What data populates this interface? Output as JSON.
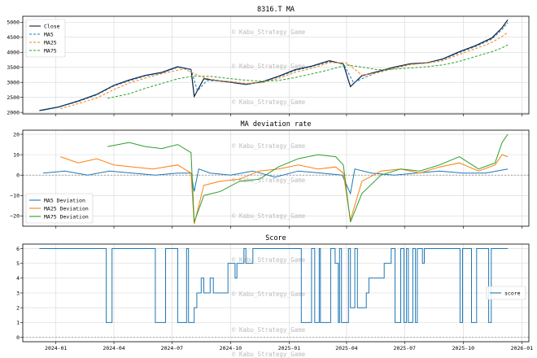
{
  "watermark": "© Kabu_Strategy_Game",
  "colors": {
    "close": "#0b1f3a",
    "ma5": "#1f77b4",
    "ma25": "#ff7f0e",
    "ma75": "#2ca02c",
    "score": "#1f77b4",
    "zero": "#888888"
  },
  "chart_data": [
    {
      "type": "line",
      "title": "8316.T MA",
      "ylim": [
        1950,
        5200
      ],
      "yticks": [
        "2000",
        "2500",
        "3000",
        "3500",
        "4000",
        "4500",
        "5000"
      ],
      "ytick_values": [
        2000,
        2500,
        3000,
        3500,
        4000,
        4500,
        5000
      ],
      "legend": [
        "Close",
        "MA5",
        "MA25",
        "MA75"
      ],
      "legend_position": "upper-left",
      "series": [
        {
          "name": "Close",
          "style": "solid",
          "x": [
            "2023-12-06",
            "2024-01-05",
            "2024-02-05",
            "2024-03-05",
            "2024-04-01",
            "2024-04-25",
            "2024-05-20",
            "2024-06-15",
            "2024-07-10",
            "2024-07-31",
            "2024-08-05",
            "2024-08-20",
            "2024-09-10",
            "2024-10-01",
            "2024-10-25",
            "2024-11-20",
            "2024-12-15",
            "2025-01-10",
            "2025-02-05",
            "2025-03-05",
            "2025-03-27",
            "2025-04-07",
            "2025-04-25",
            "2025-05-20",
            "2025-06-15",
            "2025-07-10",
            "2025-08-05",
            "2025-08-30",
            "2025-09-25",
            "2025-10-20",
            "2025-11-15",
            "2025-12-01",
            "2025-12-10"
          ],
          "values": [
            2060,
            2180,
            2380,
            2600,
            2900,
            3080,
            3230,
            3330,
            3520,
            3430,
            2530,
            3120,
            3060,
            3000,
            2930,
            3020,
            3200,
            3420,
            3540,
            3720,
            3610,
            2860,
            3220,
            3360,
            3510,
            3620,
            3650,
            3780,
            4020,
            4220,
            4480,
            4820,
            5080
          ]
        },
        {
          "name": "MA5",
          "style": "dashed",
          "x": [
            "2023-12-12",
            "2024-01-05",
            "2024-02-05",
            "2024-03-05",
            "2024-04-01",
            "2024-04-25",
            "2024-05-20",
            "2024-06-15",
            "2024-07-10",
            "2024-07-31",
            "2024-08-10",
            "2024-08-25",
            "2024-09-10",
            "2024-10-01",
            "2024-10-25",
            "2024-11-20",
            "2024-12-15",
            "2025-01-10",
            "2025-02-05",
            "2025-03-05",
            "2025-03-27",
            "2025-04-12",
            "2025-04-30",
            "2025-05-20",
            "2025-06-15",
            "2025-07-10",
            "2025-08-05",
            "2025-08-30",
            "2025-09-25",
            "2025-10-20",
            "2025-11-15",
            "2025-12-01",
            "2025-12-10"
          ],
          "values": [
            2070,
            2170,
            2360,
            2580,
            2880,
            3050,
            3210,
            3310,
            3500,
            3430,
            2720,
            3060,
            3050,
            3010,
            2950,
            3010,
            3180,
            3390,
            3520,
            3690,
            3620,
            2990,
            3170,
            3340,
            3490,
            3600,
            3650,
            3760,
            3990,
            4190,
            4440,
            4760,
            4990
          ]
        },
        {
          "name": "MA25",
          "style": "dashed",
          "x": [
            "2024-01-08",
            "2024-02-05",
            "2024-03-05",
            "2024-04-01",
            "2024-04-25",
            "2024-05-20",
            "2024-06-15",
            "2024-07-20",
            "2024-08-15",
            "2024-09-05",
            "2024-10-01",
            "2024-10-25",
            "2024-11-20",
            "2024-12-15",
            "2025-01-10",
            "2025-02-05",
            "2025-03-05",
            "2025-04-01",
            "2025-04-25",
            "2025-05-20",
            "2025-06-15",
            "2025-07-10",
            "2025-08-05",
            "2025-08-30",
            "2025-09-25",
            "2025-10-20",
            "2025-11-15",
            "2025-12-01",
            "2025-12-10"
          ],
          "values": [
            2120,
            2290,
            2480,
            2760,
            2980,
            3140,
            3290,
            3450,
            3190,
            3070,
            3030,
            2960,
            2990,
            3130,
            3330,
            3460,
            3660,
            3650,
            3240,
            3320,
            3460,
            3590,
            3640,
            3720,
            3930,
            4120,
            4330,
            4530,
            4660
          ]
        },
        {
          "name": "MA75",
          "style": "dashed",
          "x": [
            "2024-03-22",
            "2024-04-25",
            "2024-05-20",
            "2024-06-15",
            "2024-07-10",
            "2024-08-05",
            "2024-08-30",
            "2024-09-25",
            "2024-10-20",
            "2024-11-15",
            "2024-12-15",
            "2025-01-10",
            "2025-02-05",
            "2025-03-05",
            "2025-04-01",
            "2025-04-25",
            "2025-05-20",
            "2025-06-15",
            "2025-07-10",
            "2025-08-05",
            "2025-08-30",
            "2025-09-25",
            "2025-10-20",
            "2025-11-15",
            "2025-12-01",
            "2025-12-10"
          ],
          "values": [
            2470,
            2620,
            2800,
            2960,
            3120,
            3210,
            3200,
            3140,
            3080,
            3040,
            3060,
            3160,
            3280,
            3420,
            3580,
            3510,
            3420,
            3440,
            3480,
            3520,
            3580,
            3700,
            3860,
            4020,
            4150,
            4250
          ]
        }
      ]
    },
    {
      "type": "line",
      "title": "MA deviation rate",
      "ylim": [
        -25,
        22
      ],
      "yticks": [
        "20",
        "10",
        "0",
        "−10",
        "−20"
      ],
      "ytick_values": [
        20,
        10,
        0,
        -10,
        -20
      ],
      "legend": [
        "MA5 Deviation",
        "MA25 Deviation",
        "MA75 Deviation"
      ],
      "legend_position": "lower-left",
      "series": [
        {
          "name": "MA5 Deviation",
          "x": [
            "2023-12-12",
            "2024-01-15",
            "2024-02-20",
            "2024-03-25",
            "2024-04-30",
            "2024-06-05",
            "2024-07-10",
            "2024-07-31",
            "2024-08-05",
            "2024-08-12",
            "2024-08-30",
            "2024-10-01",
            "2024-11-05",
            "2024-12-10",
            "2025-01-15",
            "2025-02-20",
            "2025-03-25",
            "2025-04-07",
            "2025-04-14",
            "2025-05-10",
            "2025-06-15",
            "2025-07-20",
            "2025-08-25",
            "2025-09-30",
            "2025-11-05",
            "2025-12-10"
          ],
          "values": [
            1,
            2,
            0,
            2,
            1,
            0,
            1,
            1,
            -8,
            3,
            1,
            0,
            2,
            -1,
            2,
            1,
            0,
            -9,
            3,
            1,
            0,
            1,
            2,
            1,
            1,
            3
          ]
        },
        {
          "name": "MA25 Deviation",
          "x": [
            "2024-01-08",
            "2024-02-05",
            "2024-03-05",
            "2024-04-01",
            "2024-05-01",
            "2024-06-01",
            "2024-07-10",
            "2024-07-31",
            "2024-08-05",
            "2024-08-20",
            "2024-09-15",
            "2024-10-15",
            "2024-11-15",
            "2024-12-15",
            "2025-01-15",
            "2025-02-15",
            "2025-03-15",
            "2025-03-27",
            "2025-04-07",
            "2025-04-25",
            "2025-05-25",
            "2025-06-25",
            "2025-07-25",
            "2025-08-25",
            "2025-09-25",
            "2025-10-25",
            "2025-11-20",
            "2025-12-01",
            "2025-12-10"
          ],
          "values": [
            9,
            6,
            8,
            5,
            4,
            3,
            5,
            1,
            -24,
            -5,
            -3,
            -2,
            2,
            3,
            5,
            3,
            4,
            1,
            -22,
            -3,
            2,
            3,
            1,
            4,
            6,
            2,
            5,
            10,
            9
          ]
        },
        {
          "name": "MA75 Deviation",
          "x": [
            "2024-03-22",
            "2024-04-25",
            "2024-05-20",
            "2024-06-15",
            "2024-07-10",
            "2024-07-31",
            "2024-08-05",
            "2024-08-20",
            "2024-09-15",
            "2024-10-15",
            "2024-11-15",
            "2024-12-15",
            "2025-01-15",
            "2025-02-15",
            "2025-03-15",
            "2025-03-27",
            "2025-04-07",
            "2025-04-25",
            "2025-05-25",
            "2025-06-25",
            "2025-07-25",
            "2025-08-25",
            "2025-09-25",
            "2025-10-25",
            "2025-11-20",
            "2025-12-01",
            "2025-12-10"
          ],
          "values": [
            14,
            16,
            14,
            13,
            15,
            11,
            -23,
            -10,
            -8,
            -3,
            -2,
            4,
            8,
            10,
            9,
            5,
            -23,
            -9,
            0,
            3,
            2,
            5,
            9,
            3,
            6,
            16,
            20
          ]
        }
      ]
    },
    {
      "type": "line",
      "title": "Score",
      "ylim": [
        -0.3,
        6.3
      ],
      "yticks": [
        "6",
        "5",
        "4",
        "3",
        "2",
        "1",
        "0"
      ],
      "ytick_values": [
        6,
        5,
        4,
        3,
        2,
        1,
        0
      ],
      "legend": [
        "score"
      ],
      "legend_position": "center-right",
      "series": [
        {
          "name": "score",
          "step": true,
          "x": [
            "2023-12-06",
            "2024-03-20",
            "2024-03-22",
            "2024-03-29",
            "2024-06-05",
            "2024-06-07",
            "2024-06-21",
            "2024-07-10",
            "2024-07-12",
            "2024-07-24",
            "2024-07-27",
            "2024-07-31",
            "2024-08-05",
            "2024-08-09",
            "2024-08-16",
            "2024-08-20",
            "2024-08-23",
            "2024-08-30",
            "2024-09-04",
            "2024-09-27",
            "2024-10-08",
            "2024-10-11",
            "2024-10-18",
            "2024-10-22",
            "2024-10-25",
            "2024-11-05",
            "2025-01-20",
            "2025-01-22",
            "2025-02-05",
            "2025-02-10",
            "2025-02-12",
            "2025-02-17",
            "2025-02-19",
            "2025-02-24",
            "2025-03-07",
            "2025-03-14",
            "2025-03-19",
            "2025-03-21",
            "2025-03-24",
            "2025-03-27",
            "2025-04-04",
            "2025-04-07",
            "2025-04-14",
            "2025-04-18",
            "2025-05-02",
            "2025-05-06",
            "2025-05-20",
            "2025-05-30",
            "2025-06-10",
            "2025-06-16",
            "2025-06-20",
            "2025-06-25",
            "2025-06-30",
            "2025-07-04",
            "2025-07-07",
            "2025-07-09",
            "2025-07-14",
            "2025-07-18",
            "2025-07-21",
            "2025-07-29",
            "2025-08-01",
            "2025-08-04",
            "2025-09-26",
            "2025-09-30",
            "2025-10-14",
            "2025-10-20",
            "2025-10-22",
            "2025-10-24",
            "2025-11-10",
            "2025-11-14",
            "2025-12-10"
          ],
          "values": [
            6,
            1,
            1,
            6,
            1,
            1,
            6,
            1,
            1,
            6,
            1,
            1,
            2,
            3,
            4,
            3,
            3,
            4,
            3,
            5,
            4,
            5,
            5,
            6,
            5,
            6,
            1,
            1,
            6,
            1,
            1,
            6,
            1,
            1,
            6,
            5,
            1,
            6,
            1,
            1,
            6,
            2,
            6,
            2,
            3,
            4,
            4,
            5,
            6,
            1,
            1,
            6,
            1,
            6,
            1,
            1,
            6,
            1,
            6,
            5,
            6,
            6,
            1,
            6,
            1,
            1,
            6,
            6,
            1,
            6,
            6
          ]
        }
      ]
    }
  ],
  "x_axis": {
    "min": "2023-11-10",
    "max": "2026-01-12",
    "ticks": [
      "2024-01-01",
      "2024-04-01",
      "2024-07-01",
      "2024-10-01",
      "2025-01-01",
      "2025-04-01",
      "2025-07-01",
      "2025-10-01",
      "2026-01-01"
    ],
    "tick_labels": [
      "2024-01",
      "2024-04",
      "2024-07",
      "2024-10",
      "2025-01",
      "2025-04",
      "2025-07",
      "2025-10",
      "2026-01"
    ]
  }
}
